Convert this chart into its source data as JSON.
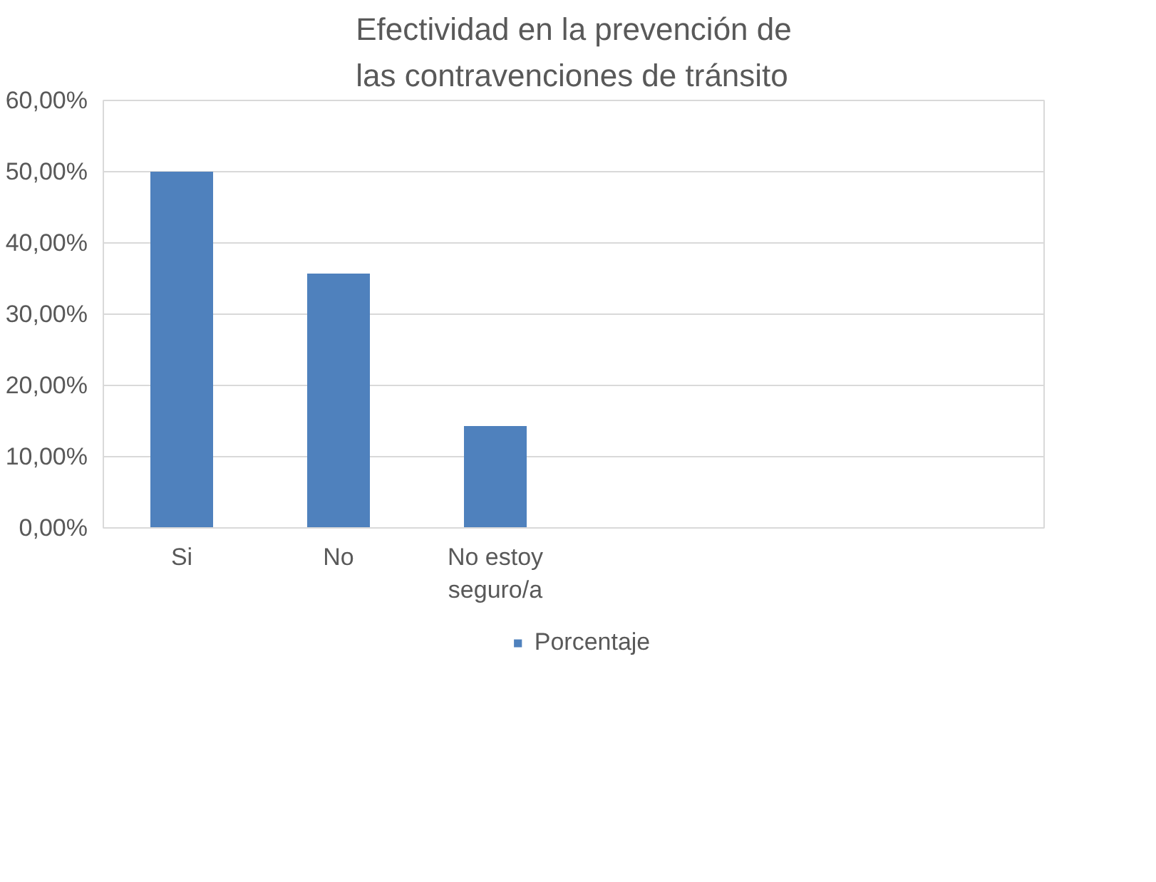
{
  "chart_data": {
    "type": "bar",
    "title": "Efectividad en la prevención de las contravenciones de tránsito",
    "categories": [
      "Si",
      "No",
      "No estoy seguro/a",
      null,
      null,
      null
    ],
    "series": [
      {
        "name": "Porcentaje",
        "color": "#4f81bd",
        "values": [
          50,
          35.7,
          14.3,
          null,
          null,
          null
        ]
      }
    ],
    "ylim": [
      0,
      60
    ],
    "yticks": [
      {
        "value": 0,
        "label": "0,00%"
      },
      {
        "value": 10,
        "label": "10,00%"
      },
      {
        "value": 20,
        "label": "20,00%"
      },
      {
        "value": 30,
        "label": "30,00%"
      },
      {
        "value": 40,
        "label": "40,00%"
      },
      {
        "value": 50,
        "label": "50,00%"
      },
      {
        "value": 60,
        "label": "60,00%"
      }
    ],
    "grid": "y",
    "legend": "bottom"
  }
}
